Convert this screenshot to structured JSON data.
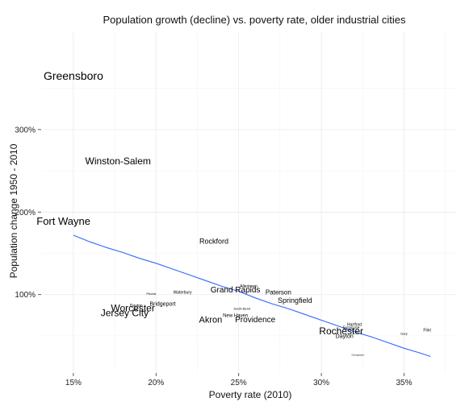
{
  "chart_data": {
    "type": "scatter",
    "title": "Population growth (decline) vs. poverty rate, older industrial cities",
    "xlabel": "Poverty rate (2010)",
    "ylabel": "Population change 1950 - 2010",
    "xlim": [
      13.1,
      38.2
    ],
    "ylim": [
      6,
      418
    ],
    "x_ticks": [
      15,
      20,
      25,
      30,
      35
    ],
    "x_tick_labels": [
      "15%",
      "20%",
      "25%",
      "30%",
      "35%"
    ],
    "y_ticks": [
      100,
      200,
      300
    ],
    "y_tick_labels": [
      "100%",
      "200%",
      "300%"
    ],
    "grid": true,
    "legend": "none",
    "points": [
      {
        "label": "Greensboro",
        "x": 15.0,
        "y": 365,
        "size": 14
      },
      {
        "label": "Winston-Salem",
        "x": 17.7,
        "y": 262,
        "size": 12
      },
      {
        "label": "Fort Wayne",
        "x": 14.4,
        "y": 189,
        "size": 13
      },
      {
        "label": "Rockford",
        "x": 23.5,
        "y": 165,
        "size": 9
      },
      {
        "label": "Grand Rapids",
        "x": 24.8,
        "y": 106,
        "size": 10
      },
      {
        "label": "Allentown",
        "x": 25.6,
        "y": 110,
        "size": 5
      },
      {
        "label": "Paterson",
        "x": 27.4,
        "y": 103,
        "size": 8
      },
      {
        "label": "Springfield",
        "x": 28.4,
        "y": 93,
        "size": 9
      },
      {
        "label": "Peoria",
        "x": 19.7,
        "y": 101,
        "size": 4
      },
      {
        "label": "Waterbury",
        "x": 21.6,
        "y": 103,
        "size": 5
      },
      {
        "label": "Bridgeport",
        "x": 20.4,
        "y": 89,
        "size": 7
      },
      {
        "label": "Dayton",
        "x": 18.8,
        "y": 87,
        "size": 5
      },
      {
        "label": "Worcester",
        "x": 18.6,
        "y": 84,
        "size": 12
      },
      {
        "label": "Jersey City",
        "x": 18.1,
        "y": 78,
        "size": 12
      },
      {
        "label": "South Bend",
        "x": 25.2,
        "y": 83,
        "size": 4
      },
      {
        "label": "New Haven",
        "x": 24.8,
        "y": 75,
        "size": 6
      },
      {
        "label": "Akron",
        "x": 23.3,
        "y": 70,
        "size": 11
      },
      {
        "label": "Providence",
        "x": 26.0,
        "y": 70,
        "size": 10
      },
      {
        "label": "Rochester",
        "x": 31.2,
        "y": 56,
        "size": 12
      },
      {
        "label": "Hartford",
        "x": 32.0,
        "y": 64,
        "size": 5
      },
      {
        "label": "Syracuse",
        "x": 31.8,
        "y": 60,
        "size": 5
      },
      {
        "label": "Dayton",
        "x": 31.4,
        "y": 50,
        "size": 7
      },
      {
        "label": "Gary",
        "x": 35.0,
        "y": 53,
        "size": 4
      },
      {
        "label": "Flint",
        "x": 36.4,
        "y": 57,
        "size": 5
      },
      {
        "label": "Youngstown",
        "x": 32.2,
        "y": 27,
        "size": 3
      }
    ],
    "trend_line": {
      "color": "#3366FF",
      "points": [
        {
          "x": 15.0,
          "y": 172
        },
        {
          "x": 16.0,
          "y": 164
        },
        {
          "x": 17.0,
          "y": 157
        },
        {
          "x": 18.0,
          "y": 151
        },
        {
          "x": 19.0,
          "y": 144
        },
        {
          "x": 20.0,
          "y": 138
        },
        {
          "x": 21.0,
          "y": 131
        },
        {
          "x": 22.0,
          "y": 124
        },
        {
          "x": 23.0,
          "y": 117
        },
        {
          "x": 24.0,
          "y": 110
        },
        {
          "x": 25.0,
          "y": 104
        },
        {
          "x": 26.0,
          "y": 96
        },
        {
          "x": 27.0,
          "y": 89
        },
        {
          "x": 28.0,
          "y": 83
        },
        {
          "x": 29.0,
          "y": 76
        },
        {
          "x": 30.0,
          "y": 69
        },
        {
          "x": 31.0,
          "y": 62
        },
        {
          "x": 32.0,
          "y": 55
        },
        {
          "x": 33.0,
          "y": 49
        },
        {
          "x": 34.0,
          "y": 42
        },
        {
          "x": 35.0,
          "y": 35
        },
        {
          "x": 36.0,
          "y": 29
        },
        {
          "x": 36.6,
          "y": 25
        }
      ]
    }
  }
}
